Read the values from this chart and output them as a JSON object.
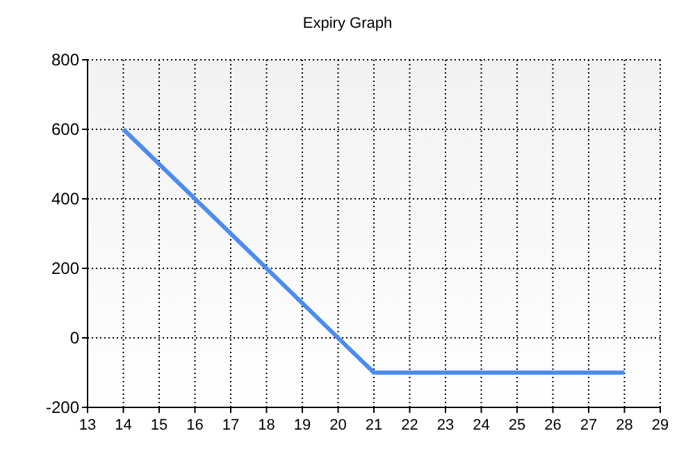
{
  "chart_data": {
    "type": "line",
    "title": "Expiry Graph",
    "x": [
      14,
      21,
      28
    ],
    "series": [
      {
        "color": "#4a8cf0",
        "values": [
          600,
          -100,
          -100
        ]
      }
    ],
    "xlim": [
      13,
      29
    ],
    "xticks": [
      13,
      14,
      15,
      16,
      17,
      18,
      19,
      20,
      21,
      22,
      23,
      24,
      25,
      26,
      27,
      28,
      29
    ],
    "ylim": [
      -200,
      800
    ],
    "yticks": [
      -200,
      0,
      200,
      400,
      600,
      800
    ],
    "grid": true,
    "marker": "none",
    "line_style": "solid"
  }
}
